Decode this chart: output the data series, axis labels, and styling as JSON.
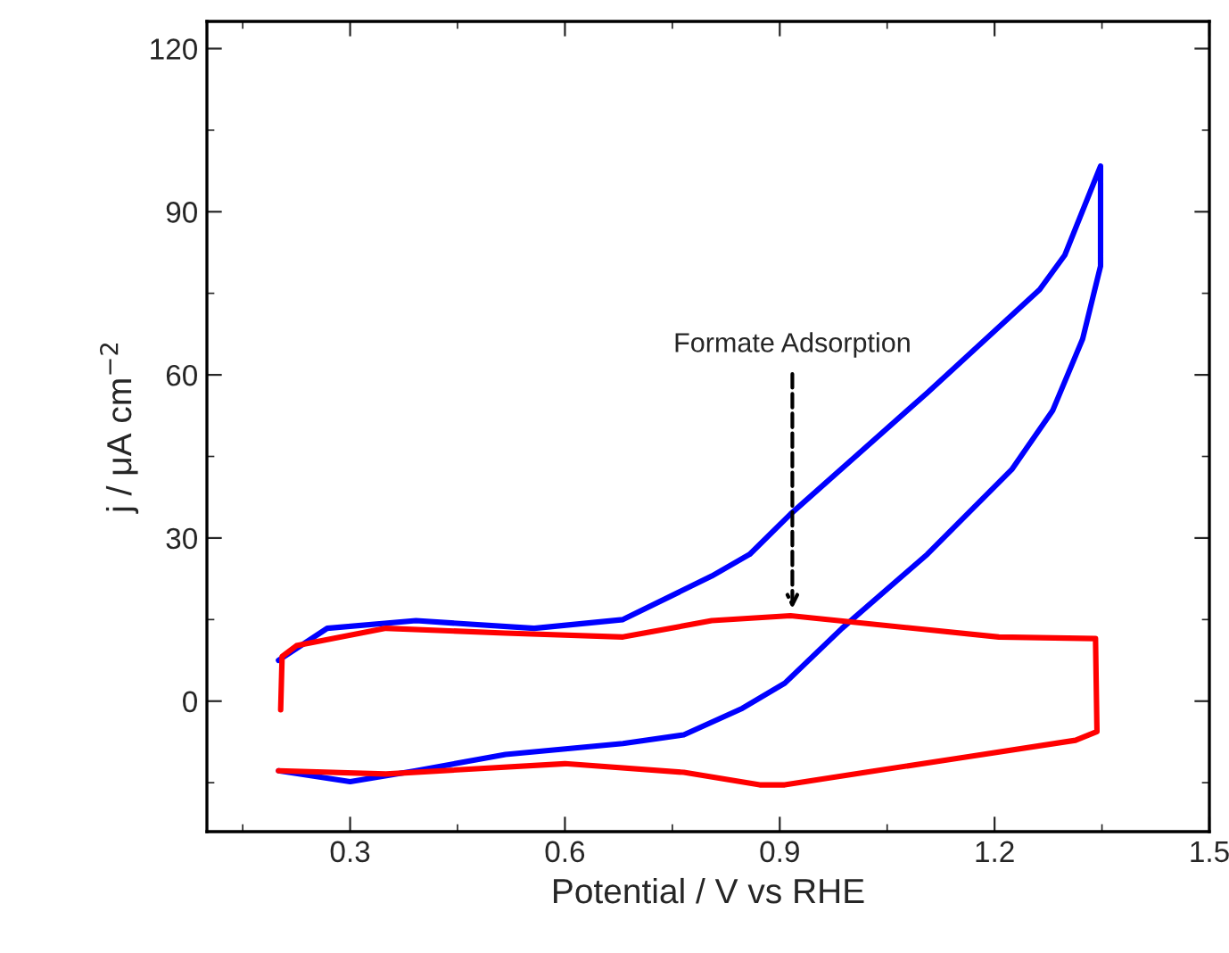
{
  "chart_data": {
    "type": "line",
    "xlabel": "Potential / V vs RHE",
    "ylabel": "j / μA cm$^{−2}$",
    "xlim": [
      0.1,
      1.5
    ],
    "xticks": [
      0.3,
      0.6,
      0.9,
      1.2,
      1.5
    ],
    "ylim": [
      -24,
      125
    ],
    "yticks": [
      0,
      30,
      60,
      90,
      120
    ],
    "grid": false,
    "marker": "none",
    "line_style": "solid",
    "series": [
      {
        "color": "#0000ff",
        "x": [
          0.2,
          0.268,
          0.392,
          0.557,
          0.681,
          0.805,
          0.858,
          0.915,
          1.106,
          1.263,
          1.298,
          1.348,
          1.348,
          1.323,
          1.281,
          1.224,
          1.106,
          0.987,
          0.907,
          0.848,
          0.766,
          0.681,
          0.517,
          0.392,
          0.3,
          0.2
        ],
        "values": [
          7.5,
          13.4,
          14.8,
          13.4,
          15,
          23,
          27,
          34.4,
          56.7,
          75.7,
          82,
          98.4,
          80,
          66.6,
          53.4,
          42.6,
          27,
          13.4,
          3.3,
          -1.3,
          -6.2,
          -7.8,
          -9.8,
          -12.8,
          -14.8,
          -12.8
        ]
      },
      {
        "color": "#ff0000",
        "x": [
          0.203,
          0.205,
          0.225,
          0.35,
          0.517,
          0.681,
          0.805,
          0.915,
          1.206,
          1.341,
          1.343,
          1.313,
          1.149,
          1.024,
          0.907,
          0.872,
          0.766,
          0.6,
          0.35,
          0.2
        ],
        "values": [
          -1.6,
          8.2,
          10.2,
          13.4,
          12.5,
          11.8,
          14.8,
          15.7,
          11.8,
          11.5,
          -5.6,
          -7.2,
          -10.5,
          -13,
          -15.4,
          -15.4,
          -13.1,
          -11.5,
          -13.4,
          -12.8
        ]
      }
    ],
    "annotations": [
      "Formate Adsorption"
    ]
  }
}
